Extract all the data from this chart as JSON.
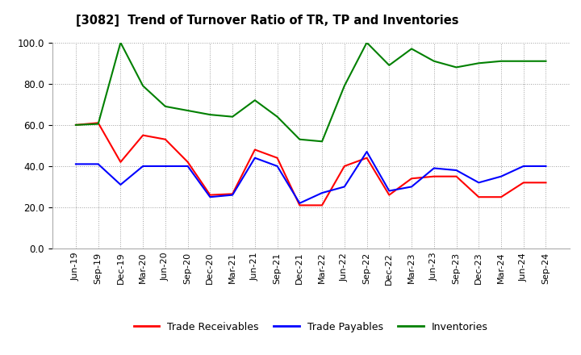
{
  "title": "[3082]  Trend of Turnover Ratio of TR, TP and Inventories",
  "x_labels": [
    "Jun-19",
    "Sep-19",
    "Dec-19",
    "Mar-20",
    "Jun-20",
    "Sep-20",
    "Dec-20",
    "Mar-21",
    "Jun-21",
    "Sep-21",
    "Dec-21",
    "Mar-22",
    "Jun-22",
    "Sep-22",
    "Dec-22",
    "Mar-23",
    "Jun-23",
    "Sep-23",
    "Dec-23",
    "Mar-24",
    "Jun-24",
    "Sep-24"
  ],
  "trade_receivables": [
    60.0,
    61.0,
    42.0,
    55.0,
    53.0,
    42.0,
    26.0,
    26.5,
    48.0,
    44.0,
    21.0,
    21.0,
    40.0,
    44.0,
    26.0,
    34.0,
    35.0,
    35.0,
    25.0,
    25.0,
    32.0,
    32.0
  ],
  "trade_payables": [
    41.0,
    41.0,
    31.0,
    40.0,
    40.0,
    40.0,
    25.0,
    26.0,
    44.0,
    40.0,
    22.0,
    27.0,
    30.0,
    47.0,
    28.0,
    30.0,
    39.0,
    38.0,
    32.0,
    35.0,
    40.0,
    40.0
  ],
  "inventories": [
    60.0,
    60.5,
    100.0,
    79.0,
    69.0,
    67.0,
    65.0,
    64.0,
    72.0,
    64.0,
    53.0,
    52.0,
    79.0,
    100.0,
    89.0,
    97.0,
    91.0,
    88.0,
    90.0,
    91.0,
    91.0,
    91.0
  ],
  "ylim": [
    0.0,
    100.0
  ],
  "yticks": [
    0.0,
    20.0,
    40.0,
    60.0,
    80.0,
    100.0
  ],
  "color_tr": "#FF0000",
  "color_tp": "#0000FF",
  "color_inv": "#008000",
  "bg_color": "#FFFFFF",
  "grid_color": "#888888",
  "legend_labels": [
    "Trade Receivables",
    "Trade Payables",
    "Inventories"
  ]
}
